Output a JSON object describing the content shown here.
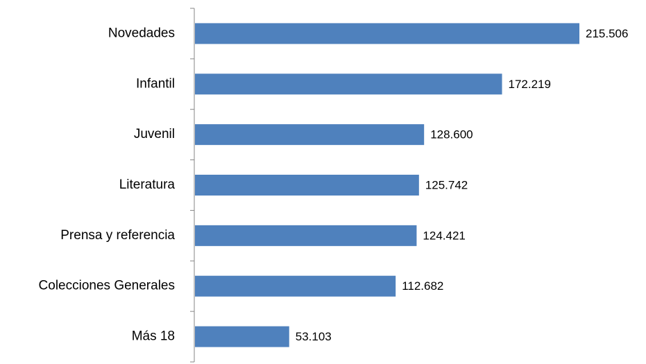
{
  "chart_data": {
    "type": "bar",
    "orientation": "horizontal",
    "categories": [
      "Novedades",
      "Infantil",
      "Juvenil",
      "Literatura",
      "Prensa y referencia",
      "Colecciones Generales",
      "Más 18"
    ],
    "values": [
      215506,
      172219,
      128600,
      125742,
      124421,
      112682,
      53103
    ],
    "value_labels": [
      "215.506",
      "172.219",
      "128.600",
      "125.742",
      "124.421",
      "112.682",
      "53.103"
    ],
    "color": "#4f81bd"
  }
}
